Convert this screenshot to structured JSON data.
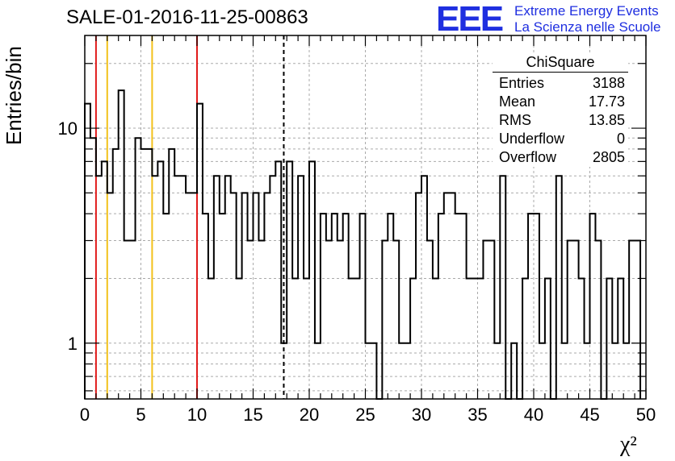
{
  "title": "SALE-01-2016-11-25-00863",
  "logo": {
    "mark": "EEE",
    "line1": "Extreme Energy Events",
    "line2": "La Scienza nelle Scuole",
    "color": "#1f2fe0"
  },
  "stats": {
    "title": "ChiSquare",
    "rows": [
      {
        "label": "Entries",
        "value": "3188"
      },
      {
        "label": "Mean",
        "value": "17.73"
      },
      {
        "label": "RMS",
        "value": "13.85"
      },
      {
        "label": "Underflow",
        "value": "0"
      },
      {
        "label": "Overflow",
        "value": "2805"
      }
    ]
  },
  "chart_data": {
    "type": "histogram",
    "xlabel": "χ²",
    "ylabel": "Entries/bin",
    "xlim": [
      0,
      50
    ],
    "ylim": [
      0.55,
      27
    ],
    "log_y": true,
    "grid": true,
    "bin_width": 0.5,
    "x_ticks": [
      "0",
      "5",
      "10",
      "15",
      "20",
      "25",
      "30",
      "35",
      "40",
      "45",
      "50"
    ],
    "y_ticks": [
      {
        "value": 1,
        "label": "1"
      },
      {
        "value": 10,
        "label": "10"
      }
    ],
    "counts": [
      13,
      9,
      6,
      7,
      5,
      8,
      15,
      3,
      3,
      9,
      8,
      8,
      6,
      7,
      4,
      8,
      6,
      6,
      5,
      5,
      13,
      4,
      2,
      6,
      4,
      6,
      5,
      2,
      5,
      3,
      5,
      3,
      5,
      6,
      7,
      1,
      7,
      2,
      6,
      2,
      7,
      1,
      4,
      3,
      4,
      3,
      4,
      2,
      2,
      4,
      1,
      1,
      0,
      3,
      4,
      3,
      1,
      1,
      2,
      5,
      6,
      3,
      2,
      4,
      5,
      5,
      4,
      4,
      2,
      2,
      2,
      3,
      3,
      1,
      6,
      0,
      1,
      0,
      2,
      4,
      4,
      1,
      2,
      0,
      6,
      1,
      3,
      3,
      2,
      1,
      4,
      3,
      0,
      2,
      1,
      2,
      1,
      3,
      3
    ],
    "vertical_lines": [
      {
        "x": 1,
        "color": "#e11b1b",
        "style": "solid"
      },
      {
        "x": 2,
        "color": "#f2c21b",
        "style": "solid"
      },
      {
        "x": 6,
        "color": "#f2c21b",
        "style": "solid"
      },
      {
        "x": 10,
        "color": "#e11b1b",
        "style": "solid"
      },
      {
        "x": 17.73,
        "color": "#000000",
        "style": "dashed"
      }
    ]
  }
}
